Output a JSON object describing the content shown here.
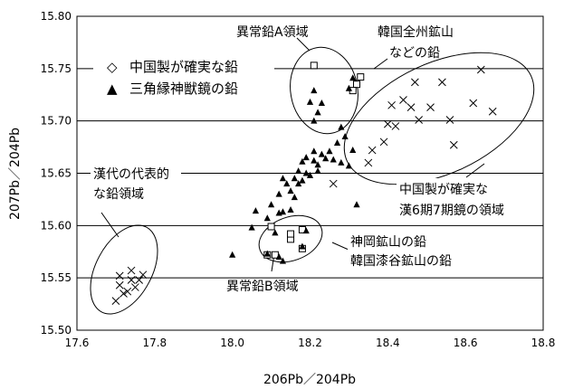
{
  "chart_data": {
    "type": "scatter",
    "xlabel": "206Pb／204Pb",
    "ylabel": "207Pb／204Pb",
    "xlim": [
      17.6,
      18.8
    ],
    "ylim": [
      15.5,
      15.8
    ],
    "xticks": [
      "17.6",
      "17.8",
      "18.0",
      "18.2",
      "18.4",
      "18.6",
      "18.8"
    ],
    "yticks": [
      "15.50",
      "15.55",
      "15.60",
      "15.65",
      "15.70",
      "15.75",
      "15.80"
    ],
    "grid": "horizontal",
    "legend": {
      "placement": "top-left",
      "entries": [
        {
          "symbol": "◇",
          "label": "中国製が確実な鉛"
        },
        {
          "symbol": "▲",
          "label": "三角縁神獣鏡の鉛"
        }
      ]
    },
    "series": [
      {
        "label": "中国製が確実な鉛",
        "marker": "square-open",
        "points": [
          [
            18.21,
            15.753
          ],
          [
            18.33,
            15.742
          ],
          [
            18.32,
            15.735
          ],
          [
            18.31,
            15.729
          ],
          [
            18.1,
            15.599
          ],
          [
            18.09,
            15.572
          ],
          [
            18.11,
            15.572
          ],
          [
            18.15,
            15.587
          ],
          [
            18.15,
            15.592
          ],
          [
            18.18,
            15.596
          ],
          [
            18.18,
            15.578
          ]
        ]
      },
      {
        "label": "三角縁神獣鏡の鉛",
        "marker": "triangle-filled",
        "points": [
          [
            18.31,
            15.741
          ],
          [
            18.3,
            15.731
          ],
          [
            18.21,
            15.729
          ],
          [
            18.2,
            15.718
          ],
          [
            18.23,
            15.717
          ],
          [
            18.22,
            15.708
          ],
          [
            18.21,
            15.7
          ],
          [
            18.28,
            15.694
          ],
          [
            18.29,
            15.685
          ],
          [
            18.27,
            15.679
          ],
          [
            18.31,
            15.672
          ],
          [
            18.21,
            15.671
          ],
          [
            18.23,
            15.668
          ],
          [
            18.25,
            15.671
          ],
          [
            18.18,
            15.661
          ],
          [
            18.19,
            15.665
          ],
          [
            18.21,
            15.662
          ],
          [
            18.22,
            15.658
          ],
          [
            18.24,
            15.664
          ],
          [
            18.26,
            15.663
          ],
          [
            18.28,
            15.66
          ],
          [
            18.3,
            15.657
          ],
          [
            18.17,
            15.652
          ],
          [
            18.19,
            15.65
          ],
          [
            18.22,
            15.652
          ],
          [
            18.2,
            15.648
          ],
          [
            18.16,
            15.645
          ],
          [
            18.18,
            15.643
          ],
          [
            18.17,
            15.64
          ],
          [
            18.13,
            15.645
          ],
          [
            18.14,
            15.64
          ],
          [
            18.15,
            15.633
          ],
          [
            18.16,
            15.627
          ],
          [
            18.12,
            15.63
          ],
          [
            18.1,
            15.62
          ],
          [
            18.15,
            15.615
          ],
          [
            18.13,
            15.613
          ],
          [
            18.06,
            15.614
          ],
          [
            18.05,
            15.598
          ],
          [
            18.09,
            15.607
          ],
          [
            18.12,
            15.612
          ],
          [
            18.11,
            15.593
          ],
          [
            18.0,
            15.572
          ],
          [
            18.09,
            15.573
          ],
          [
            18.12,
            15.57
          ],
          [
            18.18,
            15.58
          ],
          [
            18.13,
            15.566
          ],
          [
            18.19,
            15.595
          ],
          [
            18.32,
            15.62
          ]
        ]
      },
      {
        "label": "x",
        "marker": "cross",
        "points": [
          [
            18.26,
            15.64
          ],
          [
            18.35,
            15.66
          ],
          [
            18.36,
            15.672
          ],
          [
            18.39,
            15.68
          ],
          [
            18.4,
            15.697
          ],
          [
            18.42,
            15.695
          ],
          [
            18.44,
            15.72
          ],
          [
            18.46,
            15.713
          ],
          [
            18.47,
            15.737
          ],
          [
            18.48,
            15.701
          ],
          [
            18.51,
            15.713
          ],
          [
            18.54,
            15.737
          ],
          [
            18.56,
            15.701
          ],
          [
            18.57,
            15.677
          ],
          [
            18.62,
            15.717
          ],
          [
            18.64,
            15.749
          ],
          [
            18.67,
            15.709
          ],
          [
            18.41,
            15.715
          ],
          [
            17.7,
            15.528
          ],
          [
            17.71,
            15.543
          ],
          [
            17.71,
            15.552
          ],
          [
            17.73,
            15.537
          ],
          [
            17.74,
            15.548
          ],
          [
            17.74,
            15.557
          ],
          [
            17.75,
            15.541
          ],
          [
            17.77,
            15.553
          ],
          [
            17.72,
            15.535
          ],
          [
            17.76,
            15.548
          ]
        ]
      }
    ],
    "annotations": [
      {
        "id": "anno-abnormal-a",
        "text": "異常鉛A領域"
      },
      {
        "id": "anno-korea-jeonju-1",
        "text": "韓国全州鉱山"
      },
      {
        "id": "anno-korea-jeonju-2",
        "text": "などの鉛"
      },
      {
        "id": "anno-han-rep-1",
        "text": "漢代の代表的"
      },
      {
        "id": "anno-han-rep-2",
        "text": "な鉛領域"
      },
      {
        "id": "anno-china-han-1",
        "text": "中国製が確実な"
      },
      {
        "id": "anno-china-han-2",
        "text": "漢6期7期鏡の領域"
      },
      {
        "id": "anno-kamioka-1",
        "text": "神岡鉱山の鉛"
      },
      {
        "id": "anno-kamioka-2",
        "text": "韓国漆谷鉱山の鉛"
      },
      {
        "id": "anno-abnormal-b",
        "text": "異常鉛B領域"
      }
    ]
  }
}
